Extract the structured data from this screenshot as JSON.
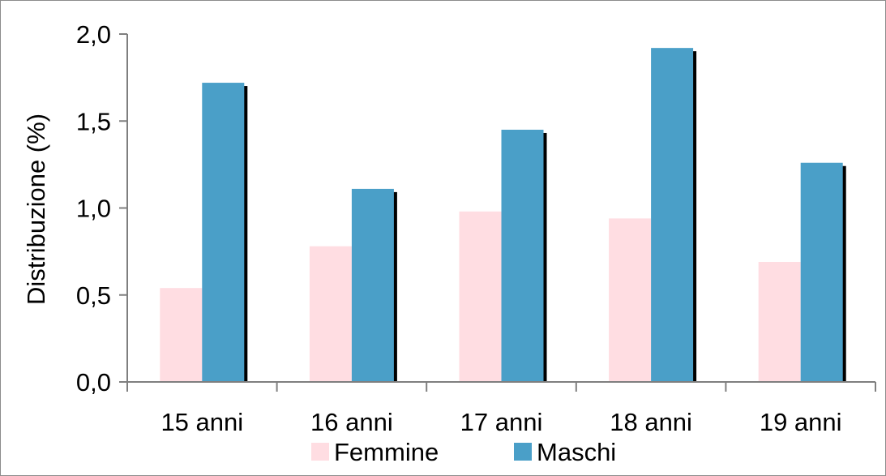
{
  "chart_data": {
    "type": "bar",
    "title": "",
    "xlabel": "",
    "ylabel": "Distribuzione (%)",
    "ylim": [
      0,
      2
    ],
    "yticks": [
      "0,0",
      "0,5",
      "1,0",
      "1,5",
      "2,0"
    ],
    "categories": [
      "15 anni",
      "16 anni",
      "17 anni",
      "18 anni",
      "19 anni"
    ],
    "series": [
      {
        "name": "Femmine",
        "color": "#ffdde2",
        "values": [
          0.54,
          0.78,
          0.98,
          0.94,
          0.69
        ]
      },
      {
        "name": "Maschi",
        "color": "#4a9fc8",
        "values": [
          1.72,
          1.11,
          1.45,
          1.92,
          1.26
        ]
      }
    ],
    "grid": false,
    "legend": "bottom"
  }
}
